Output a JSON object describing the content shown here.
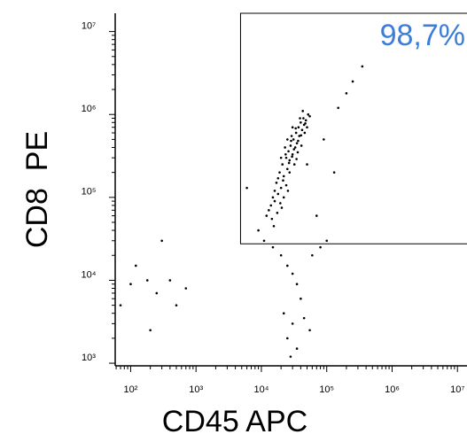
{
  "chart_data": {
    "type": "scatter",
    "x_label": "CD45 APC",
    "y_label": "CD8  PE",
    "annotation": "98,7%",
    "annotation_color": "#3b7dd8",
    "log_x": true,
    "log_y": true,
    "xlim": [
      58,
      14000000
    ],
    "ylim": [
      930,
      16600000
    ],
    "xticks": [
      {
        "value": 100,
        "label": "10²"
      },
      {
        "value": 1000,
        "label": "10³"
      },
      {
        "value": 10000,
        "label": "10⁴"
      },
      {
        "value": 100000,
        "label": "10⁵"
      },
      {
        "value": 1000000,
        "label": "10⁶"
      },
      {
        "value": 10000000,
        "label": "10⁷"
      }
    ],
    "yticks": [
      {
        "value": 1000,
        "label": "10³"
      },
      {
        "value": 10000,
        "label": "10⁴"
      },
      {
        "value": 100000,
        "label": "10⁵"
      },
      {
        "value": 1000000,
        "label": "10⁶"
      },
      {
        "value": 10000000,
        "label": "10⁷"
      }
    ],
    "gate": [
      4800,
      27500
    ],
    "color": "#000000",
    "x": [
      14000,
      16000,
      13000,
      18000,
      15000,
      20000,
      17000,
      22000,
      19000,
      25000,
      21000,
      27000,
      24000,
      30000,
      26000,
      33000,
      28000,
      35000,
      31000,
      38000,
      34000,
      42000,
      37000,
      45000,
      40000,
      48000,
      44000,
      52000,
      23000,
      29000,
      20000,
      36000,
      41000,
      32000,
      18000,
      24000,
      16000,
      27000,
      50000,
      46000,
      39000,
      30000,
      25000,
      55000,
      43000,
      22000,
      12000,
      14500,
      17500,
      19500,
      21500,
      26500,
      31500,
      36500,
      33500,
      28500,
      23500,
      40500,
      47000,
      29500,
      34500,
      15500,
      20500,
      25500,
      150000,
      200000,
      350000,
      250000,
      90000,
      6000,
      11000,
      15000,
      20000,
      25000,
      30000,
      35000,
      40000,
      22000,
      30000,
      25000,
      35000,
      28000,
      45000,
      55000,
      80000,
      100000,
      60000,
      120,
      180,
      250,
      400,
      700,
      300,
      70,
      200,
      500,
      100,
      130000,
      9000,
      70000,
      50000
    ],
    "y": [
      80000,
      90000,
      70000,
      110000,
      100000,
      130000,
      150000,
      180000,
      200000,
      220000,
      250000,
      280000,
      300000,
      330000,
      360000,
      400000,
      420000,
      450000,
      500000,
      550000,
      600000,
      650000,
      700000,
      750000,
      800000,
      850000,
      900000,
      1000000,
      400000,
      550000,
      300000,
      350000,
      420000,
      250000,
      170000,
      140000,
      120000,
      200000,
      700000,
      600000,
      900000,
      700000,
      500000,
      950000,
      1100000,
      100000,
      60000,
      55000,
      65000,
      85000,
      160000,
      260000,
      380000,
      480000,
      680000,
      480000,
      330000,
      560000,
      780000,
      310000,
      290000,
      45000,
      75000,
      120000,
      1200000,
      1800000,
      3800000,
      2500000,
      500000,
      130000,
      30000,
      25000,
      20000,
      15000,
      12000,
      9000,
      6000,
      4000,
      3000,
      2000,
      1500,
      1200,
      3500,
      2500,
      25000,
      30000,
      20000,
      15000,
      10000,
      7000,
      10000,
      8000,
      30000,
      5000,
      2500,
      5000,
      9000,
      200000,
      40000,
      60000,
      250000
    ]
  }
}
